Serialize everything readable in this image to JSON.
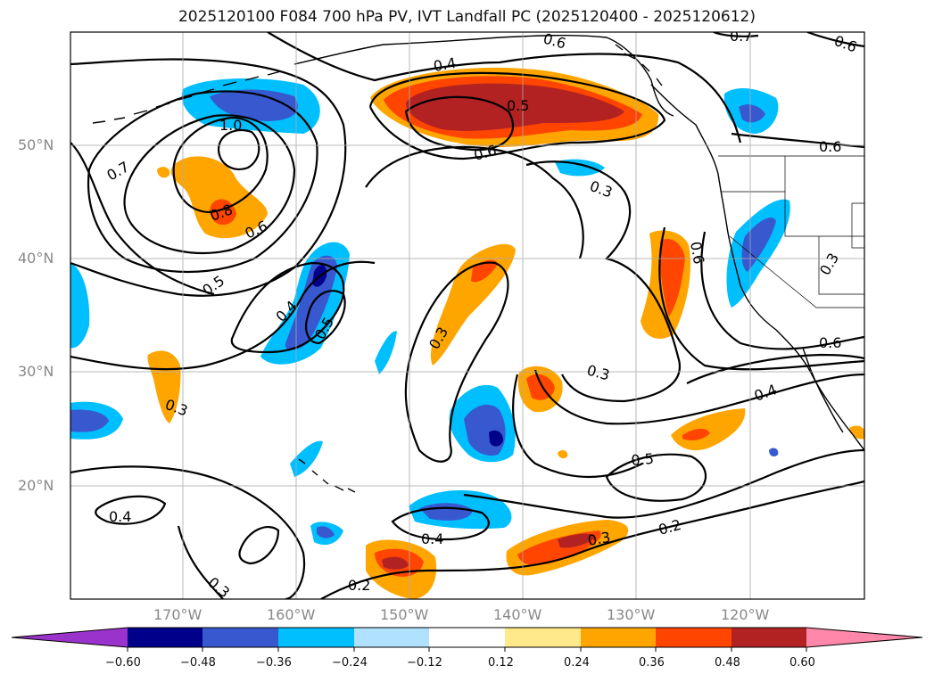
{
  "title": "2025120100 F084 700 hPa PV, IVT Landfall PC (2025120400 - 2025120612)",
  "lat_labels": [
    "50°N",
    "40°N",
    "30°N",
    "20°N"
  ],
  "lon_labels": [
    "170°W",
    "160°W",
    "150°W",
    "140°W",
    "130°W",
    "120°W"
  ],
  "contour_labels": [
    "0.4",
    "0.5",
    "0.6",
    "0.7",
    "1.0",
    "0.8",
    "0.6",
    "0.5",
    "0.4",
    "0.5",
    "0.3",
    "0.3",
    "0.3",
    "0.3",
    "0.6",
    "0.6",
    "0.6",
    "0.4",
    "0.5",
    "0.4",
    "0.4",
    "0.3",
    "0.2",
    "0.2",
    "0.3",
    "0.3",
    "0.6",
    "0.7",
    "0.6"
  ],
  "colorbar": {
    "ticks": [
      "−0.60",
      "−0.48",
      "−0.36",
      "−0.24",
      "−0.12",
      "0.12",
      "0.24",
      "0.36",
      "0.48",
      "0.60"
    ],
    "colors": [
      "#9933cc",
      "#00008b",
      "#3858d0",
      "#00bfff",
      "#b0e2ff",
      "#ffffff",
      "#ffe98a",
      "#ffa500",
      "#ff4500",
      "#b22222",
      "#ff88aa"
    ]
  },
  "fill_colors": {
    "neg1": "#00bfff",
    "neg2": "#3858d0",
    "neg3": "#00008b",
    "pos1": "#ffa500",
    "pos2": "#ff4500",
    "pos3": "#b22222"
  }
}
